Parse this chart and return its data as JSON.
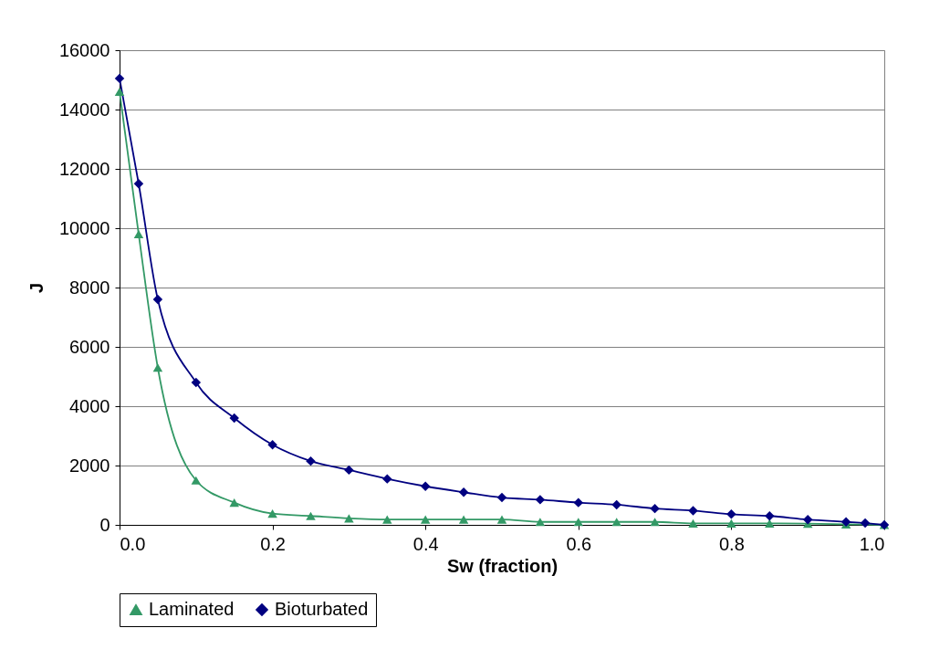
{
  "chart_data": {
    "type": "line",
    "xlabel": "Sw (fraction)",
    "ylabel": "J",
    "xlim": [
      0,
      1
    ],
    "xticks": [
      {
        "value": 0,
        "label": "0.0"
      },
      0.2,
      0.4,
      0.6,
      0.8,
      {
        "value": 1,
        "label": "1.0"
      }
    ],
    "ylim": [
      0,
      16000
    ],
    "yticks": [
      0,
      2000,
      4000,
      6000,
      8000,
      10000,
      12000,
      14000,
      16000
    ],
    "grid": "y",
    "legend": "bottom",
    "series": [
      {
        "name": "Laminated",
        "color": "#339966",
        "marker": "triangle",
        "x": [
          0,
          0.025,
          0.05,
          0.1,
          0.15,
          0.2,
          0.25,
          0.3,
          0.35,
          0.4,
          0.45,
          0.5,
          0.55,
          0.6,
          0.65,
          0.7,
          0.75,
          0.8,
          0.85,
          0.9,
          0.95,
          1.0
        ],
        "values": [
          14600,
          9800,
          5300,
          1500,
          750,
          380,
          300,
          220,
          180,
          180,
          180,
          180,
          100,
          100,
          100,
          100,
          50,
          50,
          50,
          40,
          20,
          0
        ]
      },
      {
        "name": "Bioturbated",
        "color": "#000080",
        "marker": "diamond",
        "x": [
          0,
          0.025,
          0.05,
          0.1,
          0.15,
          0.2,
          0.25,
          0.3,
          0.35,
          0.4,
          0.45,
          0.5,
          0.55,
          0.6,
          0.65,
          0.7,
          0.75,
          0.8,
          0.85,
          0.9,
          0.95,
          0.975,
          1.0
        ],
        "values": [
          15050,
          11500,
          7600,
          4800,
          3600,
          2700,
          2150,
          1850,
          1550,
          1300,
          1100,
          920,
          850,
          750,
          680,
          550,
          480,
          360,
          300,
          180,
          100,
          60,
          0
        ]
      }
    ]
  }
}
